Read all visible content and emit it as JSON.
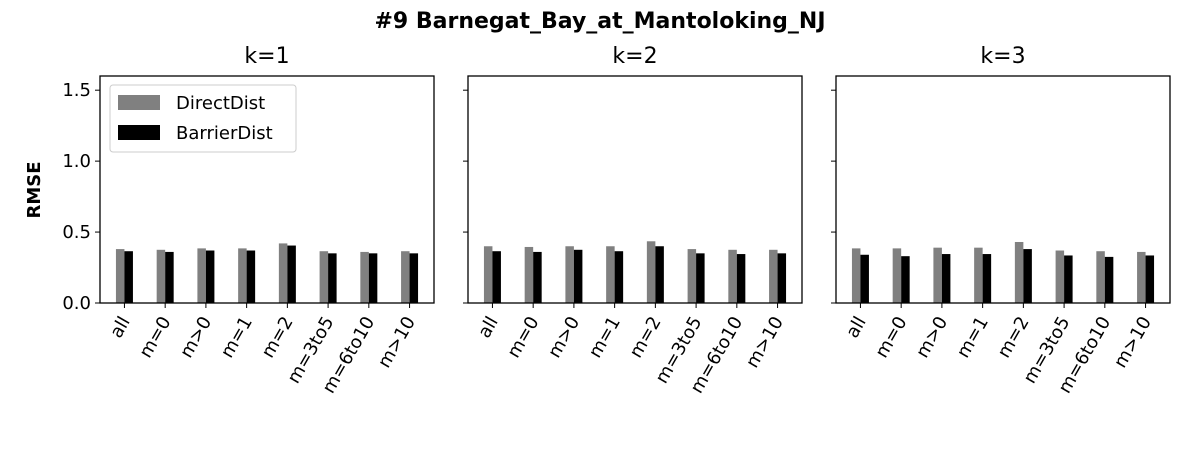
{
  "chart_data": {
    "type": "bar",
    "title": "#9 Barnegat_Bay_at_Mantoloking_NJ",
    "ylabel": "RMSE",
    "ylim": [
      0,
      1.6
    ],
    "yticks": [
      "0.0",
      "0.5",
      "1.0",
      "1.5"
    ],
    "ytick_values": [
      0,
      0.5,
      1.0,
      1.5
    ],
    "categories": [
      "all",
      "m=0",
      "m>0",
      "m=1",
      "m=2",
      "m=3to5",
      "m=6to10",
      "m>10"
    ],
    "legend": {
      "placement": "upper-left",
      "panel": 0
    },
    "colors": {
      "DirectDist": "#808080",
      "BarrierDist": "#000000"
    },
    "panels": [
      {
        "title": "k=1",
        "series": [
          {
            "name": "DirectDist",
            "values": [
              0.38,
              0.375,
              0.385,
              0.385,
              0.42,
              0.365,
              0.36,
              0.365
            ]
          },
          {
            "name": "BarrierDist",
            "values": [
              0.365,
              0.36,
              0.37,
              0.37,
              0.405,
              0.35,
              0.35,
              0.35
            ]
          }
        ]
      },
      {
        "title": "k=2",
        "series": [
          {
            "name": "DirectDist",
            "values": [
              0.4,
              0.395,
              0.4,
              0.4,
              0.435,
              0.38,
              0.375,
              0.375
            ]
          },
          {
            "name": "BarrierDist",
            "values": [
              0.365,
              0.36,
              0.375,
              0.365,
              0.4,
              0.35,
              0.345,
              0.35
            ]
          }
        ]
      },
      {
        "title": "k=3",
        "series": [
          {
            "name": "DirectDist",
            "values": [
              0.385,
              0.385,
              0.39,
              0.39,
              0.43,
              0.37,
              0.365,
              0.36
            ]
          },
          {
            "name": "BarrierDist",
            "values": [
              0.34,
              0.33,
              0.345,
              0.345,
              0.38,
              0.335,
              0.325,
              0.335
            ]
          }
        ]
      }
    ]
  }
}
